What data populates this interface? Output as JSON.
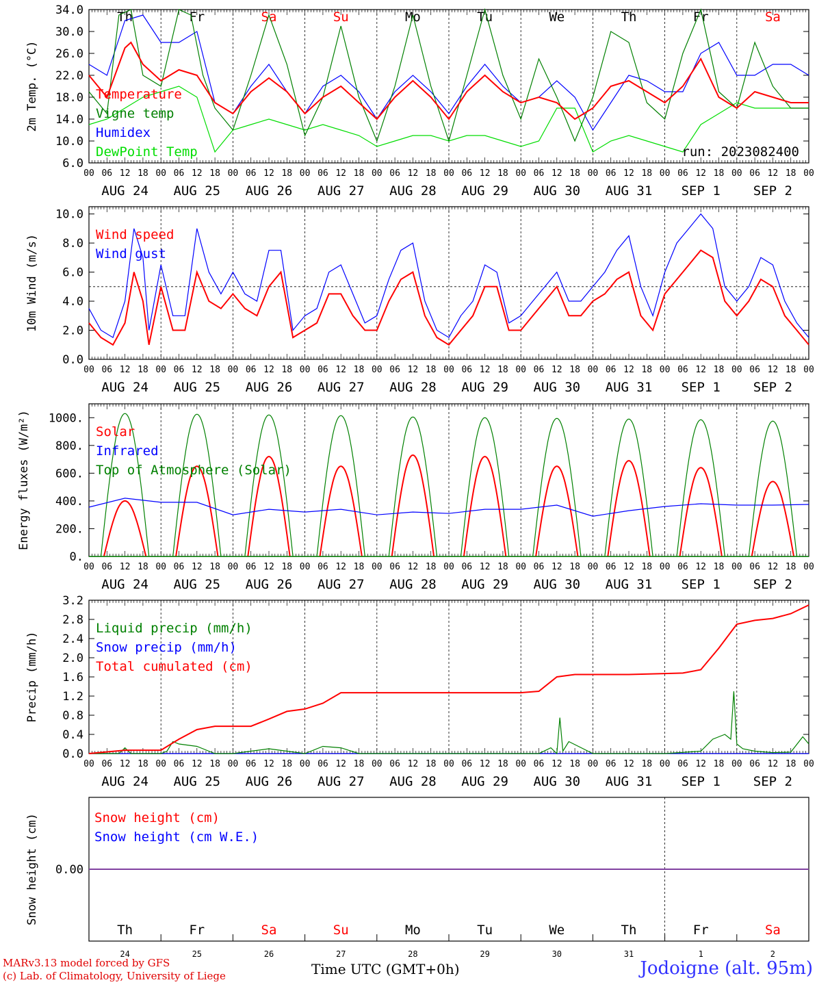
{
  "days": [
    {
      "dow": "Th",
      "date": "AUG 24",
      "num": "24",
      "weekend": false
    },
    {
      "dow": "Fr",
      "date": "AUG 25",
      "num": "25",
      "weekend": false
    },
    {
      "dow": "Sa",
      "date": "AUG 26",
      "num": "26",
      "weekend": true
    },
    {
      "dow": "Su",
      "date": "AUG 27",
      "num": "27",
      "weekend": true
    },
    {
      "dow": "Mo",
      "date": "AUG 28",
      "num": "28",
      "weekend": false
    },
    {
      "dow": "Tu",
      "date": "AUG 29",
      "num": "29",
      "weekend": false
    },
    {
      "dow": "We",
      "date": "AUG 30",
      "num": "30",
      "weekend": false
    },
    {
      "dow": "Th",
      "date": "AUG 31",
      "num": "31",
      "weekend": false
    },
    {
      "dow": "Fr",
      "date": "SEP  1",
      "num": "1",
      "weekend": false
    },
    {
      "dow": "Sa",
      "date": "SEP  2",
      "num": "2",
      "weekend": true
    }
  ],
  "hour_ticks": [
    "00",
    "06",
    "12",
    "18"
  ],
  "run_label": "run: 2023082400",
  "footer": {
    "model": "MARv3.13 model forced by GFS",
    "lab": "(c) Lab. of Climatology, University of Liege",
    "time_axis": "Time UTC (GMT+0h)",
    "station": "Jodoigne (alt. 95m)"
  },
  "colors": {
    "red": "#ff0000",
    "green": "#008000",
    "blue": "#0000ff",
    "lightgreen": "#00dd00",
    "purple": "#8040a0"
  },
  "chart_data": [
    {
      "type": "line",
      "ylabel": "2m Temp. (°C)",
      "ylim": [
        6,
        34
      ],
      "yticks": [
        "6.0",
        "10.0",
        "14.0",
        "18.0",
        "22.0",
        "26.0",
        "30.0",
        "34.0"
      ],
      "x_unit": "hours since AUG 24 00 UTC",
      "legend": [
        "Temperature",
        "Vigne temp",
        "Humidex",
        "DewPoint Temp"
      ],
      "series": [
        {
          "name": "Temperature",
          "color": "red",
          "x": [
            0,
            6,
            12,
            14,
            18,
            24,
            30,
            36,
            42,
            48,
            54,
            60,
            66,
            72,
            78,
            84,
            90,
            96,
            102,
            108,
            114,
            120,
            126,
            132,
            138,
            144,
            150,
            156,
            162,
            168,
            174,
            180,
            186,
            192,
            198,
            204,
            210,
            216,
            222,
            228,
            234,
            240
          ],
          "values": [
            22,
            18,
            27,
            28,
            24,
            21,
            23,
            22,
            17,
            15,
            19,
            21.5,
            19,
            15,
            18,
            20,
            17,
            14,
            18,
            21,
            18,
            14,
            19,
            22,
            19,
            17,
            18,
            17,
            14,
            16,
            20,
            21,
            19,
            17,
            20,
            25,
            18,
            16,
            19,
            18,
            17,
            17
          ]
        },
        {
          "name": "Vigne temp",
          "color": "green",
          "x": [
            0,
            6,
            10,
            14,
            18,
            24,
            30,
            34,
            38,
            42,
            48,
            54,
            60,
            66,
            72,
            78,
            84,
            90,
            96,
            102,
            108,
            114,
            120,
            126,
            132,
            138,
            144,
            150,
            156,
            162,
            168,
            174,
            180,
            186,
            192,
            198,
            204,
            210,
            216,
            222,
            228,
            234,
            240
          ],
          "values": [
            19,
            15,
            33,
            34,
            22,
            20,
            34,
            33,
            22,
            16,
            12,
            22,
            33,
            24,
            11,
            18,
            31,
            18,
            10,
            20,
            33,
            20,
            10,
            22,
            34,
            22,
            14,
            25,
            18,
            10,
            18,
            30,
            28,
            17,
            14,
            26,
            34,
            19,
            16,
            28,
            20,
            16,
            16
          ]
        },
        {
          "name": "Humidex",
          "color": "blue",
          "x": [
            0,
            6,
            12,
            18,
            24,
            30,
            36,
            42,
            48,
            54,
            60,
            66,
            72,
            78,
            84,
            90,
            96,
            102,
            108,
            114,
            120,
            126,
            132,
            138,
            144,
            150,
            156,
            162,
            168,
            174,
            180,
            186,
            192,
            198,
            204,
            210,
            216,
            222,
            228,
            234,
            240
          ],
          "values": [
            24,
            22,
            32,
            33,
            28,
            28,
            30,
            17,
            15,
            20,
            24,
            19,
            15,
            20,
            22,
            19,
            14,
            19,
            22,
            19,
            15,
            20,
            24,
            20,
            17,
            18,
            21,
            18,
            12,
            17,
            22,
            21,
            19,
            19,
            26,
            28,
            22,
            22,
            24,
            24,
            22
          ]
        },
        {
          "name": "DewPoint Temp",
          "color": "lightgreen",
          "x": [
            0,
            6,
            12,
            18,
            24,
            30,
            36,
            42,
            48,
            54,
            60,
            66,
            72,
            78,
            84,
            90,
            96,
            102,
            108,
            114,
            120,
            126,
            132,
            138,
            144,
            150,
            156,
            162,
            168,
            174,
            180,
            186,
            192,
            198,
            204,
            210,
            216,
            222,
            228,
            234,
            240
          ],
          "values": [
            13,
            14,
            16,
            18,
            19,
            20,
            18,
            8,
            12,
            13,
            14,
            13,
            12,
            13,
            12,
            11,
            9,
            10,
            11,
            11,
            10,
            11,
            11,
            10,
            9,
            10,
            16,
            16,
            8,
            10,
            11,
            10,
            9,
            8,
            13,
            15,
            17,
            16,
            16,
            16,
            16
          ]
        }
      ]
    },
    {
      "type": "line",
      "ylabel": "10m Wind (m/s)",
      "ylim": [
        0,
        10.5
      ],
      "yticks": [
        "0.0",
        "2.0",
        "4.0",
        "6.0",
        "8.0",
        "10.0"
      ],
      "reference_line": 5,
      "legend": [
        "Wind speed",
        "Wind gust"
      ],
      "series": [
        {
          "name": "Wind speed",
          "color": "red",
          "x": [
            0,
            4,
            8,
            12,
            15,
            18,
            20,
            24,
            28,
            32,
            36,
            40,
            44,
            48,
            52,
            56,
            60,
            64,
            68,
            72,
            76,
            80,
            84,
            88,
            92,
            96,
            100,
            104,
            108,
            112,
            116,
            120,
            124,
            128,
            132,
            136,
            140,
            144,
            148,
            152,
            156,
            160,
            164,
            168,
            172,
            176,
            180,
            184,
            188,
            192,
            196,
            200,
            204,
            208,
            212,
            216,
            220,
            224,
            228,
            232,
            236,
            240
          ],
          "values": [
            2.5,
            1.5,
            1,
            2.5,
            6,
            4,
            1,
            5,
            2,
            2,
            6,
            4,
            3.5,
            4.5,
            3.5,
            3,
            5,
            6,
            1.5,
            2,
            2.5,
            4.5,
            4.5,
            3,
            2,
            2,
            4,
            5.5,
            6,
            3,
            1.5,
            1,
            2,
            3,
            5,
            5,
            2,
            2,
            3,
            4,
            5,
            3,
            3,
            4,
            4.5,
            5.5,
            6,
            3,
            2,
            4.5,
            5.5,
            6.5,
            7.5,
            7,
            4,
            3,
            4,
            5.5,
            5,
            3,
            2,
            1
          ]
        },
        {
          "name": "Wind gust",
          "color": "blue",
          "x": [
            0,
            4,
            8,
            12,
            15,
            18,
            20,
            24,
            28,
            32,
            36,
            40,
            44,
            48,
            52,
            56,
            60,
            64,
            68,
            72,
            76,
            80,
            84,
            88,
            92,
            96,
            100,
            104,
            108,
            112,
            116,
            120,
            124,
            128,
            132,
            136,
            140,
            144,
            148,
            152,
            156,
            160,
            164,
            168,
            172,
            176,
            180,
            184,
            188,
            192,
            196,
            200,
            204,
            208,
            212,
            216,
            220,
            224,
            228,
            232,
            236,
            240
          ],
          "values": [
            3.5,
            2,
            1.5,
            4,
            9,
            7,
            2,
            6.5,
            3,
            3,
            9,
            6,
            4.5,
            6,
            4.5,
            4,
            7.5,
            7.5,
            2,
            3,
            3.5,
            6,
            6.5,
            4.5,
            2.5,
            3,
            5.5,
            7.5,
            8,
            4,
            2,
            1.5,
            3,
            4,
            6.5,
            6,
            2.5,
            3,
            4,
            5,
            6,
            4,
            4,
            5,
            6,
            7.5,
            8.5,
            5,
            3,
            6,
            8,
            9,
            10,
            9,
            5,
            4,
            5,
            7,
            6.5,
            4,
            2.5,
            1.5
          ]
        }
      ]
    },
    {
      "type": "line",
      "ylabel": "Energy fluxes (W/m²)",
      "ylim": [
        0,
        1100
      ],
      "yticks": [
        "0.",
        "200.",
        "400.",
        "600.",
        "800.",
        "1000."
      ],
      "legend": [
        "Solar",
        "Infrared",
        "Top of Atmosphere (Solar)"
      ],
      "series": [
        {
          "name": "Solar",
          "color": "red",
          "daily_peak": [
            400,
            650,
            720,
            650,
            730,
            720,
            650,
            690,
            640,
            540
          ]
        },
        {
          "name": "Infrared",
          "color": "blue",
          "x": [
            0,
            12,
            24,
            36,
            48,
            60,
            72,
            84,
            96,
            108,
            120,
            132,
            144,
            156,
            168,
            180,
            192,
            204,
            216,
            228,
            240
          ],
          "values": [
            355,
            420,
            390,
            390,
            300,
            340,
            320,
            340,
            300,
            320,
            310,
            340,
            340,
            370,
            290,
            330,
            360,
            380,
            370,
            370,
            375
          ]
        },
        {
          "name": "Top of Atmosphere (Solar)",
          "color": "green",
          "daily_peak": [
            1030,
            1025,
            1020,
            1015,
            1005,
            1000,
            995,
            990,
            985,
            975
          ]
        }
      ]
    },
    {
      "type": "line",
      "ylabel": "Precip (mm/h)",
      "ylim": [
        0,
        3.2
      ],
      "yticks": [
        "0.0",
        "0.4",
        "0.8",
        "1.2",
        "1.6",
        "2.0",
        "2.4",
        "2.8",
        "3.2"
      ],
      "legend": [
        "Liquid precip (mm/h)",
        "Snow precip (mm/h)",
        "Total cumulated (cm)"
      ],
      "series": [
        {
          "name": "Total cumulated (cm)",
          "color": "red",
          "x": [
            0,
            12,
            24,
            30,
            36,
            42,
            48,
            54,
            60,
            66,
            72,
            78,
            84,
            90,
            96,
            108,
            120,
            132,
            144,
            150,
            156,
            162,
            168,
            180,
            192,
            198,
            204,
            210,
            216,
            222,
            228,
            234,
            240
          ],
          "values": [
            0,
            0.07,
            0.07,
            0.3,
            0.5,
            0.57,
            0.57,
            0.57,
            0.72,
            0.88,
            0.93,
            1.05,
            1.27,
            1.27,
            1.27,
            1.27,
            1.27,
            1.27,
            1.27,
            1.3,
            1.6,
            1.65,
            1.65,
            1.65,
            1.67,
            1.68,
            1.75,
            2.2,
            2.7,
            2.78,
            2.82,
            2.92,
            3.1
          ]
        },
        {
          "name": "Liquid precip (mm/h)",
          "color": "green",
          "x": [
            0,
            10,
            12,
            14,
            24,
            26,
            28,
            30,
            36,
            40,
            42,
            48,
            54,
            60,
            66,
            72,
            78,
            84,
            90,
            96,
            150,
            154,
            156,
            157,
            158,
            160,
            168,
            192,
            204,
            208,
            212,
            214,
            215,
            216,
            218,
            222,
            228,
            234,
            238,
            240
          ],
          "values": [
            0,
            0,
            0.12,
            0,
            0,
            0.05,
            0.25,
            0.2,
            0.15,
            0.05,
            0,
            0,
            0.05,
            0.1,
            0.05,
            0,
            0.15,
            0.12,
            0,
            0,
            0,
            0.12,
            0,
            0.75,
            0.05,
            0.25,
            0,
            0,
            0.05,
            0.3,
            0.4,
            0.3,
            1.3,
            0.2,
            0.1,
            0.05,
            0.02,
            0.03,
            0.35,
            0.2
          ]
        },
        {
          "name": "Snow precip (mm/h)",
          "color": "blue",
          "x": [
            0,
            240
          ],
          "values": [
            0,
            0
          ]
        }
      ]
    },
    {
      "type": "line",
      "ylabel": "Snow height (cm)",
      "yticks": [
        "0.00"
      ],
      "legend": [
        "Snow height (cm)",
        "Snow height (cm W.E.)"
      ],
      "series": [
        {
          "name": "Snow height (cm)",
          "color": "red",
          "x": [
            0,
            240
          ],
          "values": [
            0,
            0
          ]
        },
        {
          "name": "Snow height (cm W.E.)",
          "color": "blue",
          "x": [
            0,
            240
          ],
          "values": [
            0,
            0
          ]
        }
      ]
    }
  ]
}
